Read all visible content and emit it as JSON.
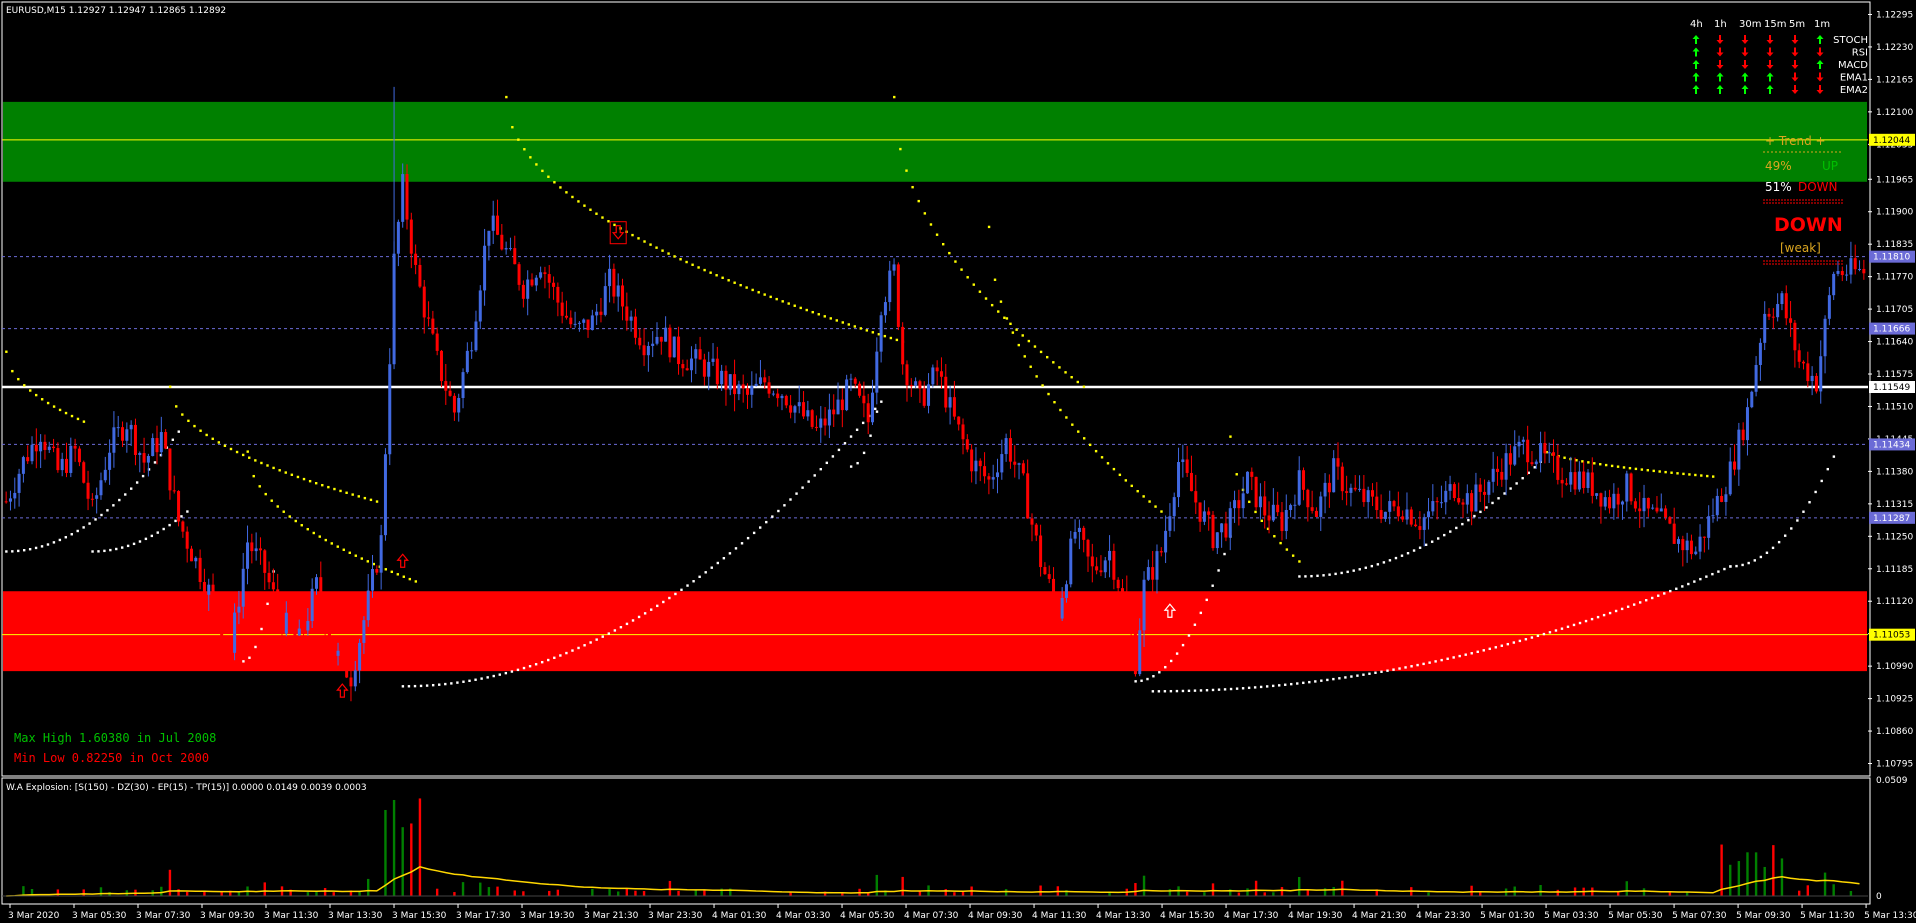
{
  "header": {
    "symbol_info": "EURUSD,M15  1.12927 1.12947 1.12865 1.12892"
  },
  "indicator_header": "W.A Explosion: [S(150) - DZ(30) - EP(15) - TP(15)] 0.0000 0.0149 0.0039 0.0003",
  "stats": {
    "max_high": "Max High 1.60380 in Jul 2008",
    "min_low": "Min Low  0.82250 in Oct 2000"
  },
  "trend_panel": {
    "title": "+  Trend  +",
    "up_pct": "49%",
    "up_label": "UP",
    "down_pct": "51%",
    "down_label": "DOWN",
    "verdict": "DOWN",
    "strength": "[weak]"
  },
  "signal_table": {
    "timeframes": [
      "4h",
      "1h",
      "30m",
      "15m",
      "5m",
      "1m"
    ],
    "rows": [
      {
        "name": "STOCH",
        "signals": [
          "up",
          "down",
          "down",
          "down",
          "down",
          "up"
        ]
      },
      {
        "name": "RSI",
        "signals": [
          "up",
          "down",
          "down",
          "down",
          "down",
          "down"
        ]
      },
      {
        "name": "MACD",
        "signals": [
          "up",
          "down",
          "down",
          "down",
          "down",
          "up"
        ]
      },
      {
        "name": "EMA1",
        "signals": [
          "up",
          "up",
          "up",
          "up",
          "down",
          "down"
        ]
      },
      {
        "name": "EMA2",
        "signals": [
          "up",
          "up",
          "up",
          "up",
          "down",
          "down"
        ]
      }
    ]
  },
  "colors": {
    "bull": "#4169e1",
    "bear": "#ff0000",
    "supply_zone": "#008000",
    "demand_zone": "#ff0000",
    "psar_bear": "#ffff00",
    "psar_bull": "#ffffff",
    "hline_yellow": "#ffff00",
    "hline_white": "#ffffff",
    "dotted_level": "#6b6bd6",
    "hist_up": "#008000",
    "hist_down": "#ff0000",
    "signal_line": "#ffd700"
  },
  "chart_data": {
    "type": "candlestick",
    "y_ticks": [
      "1.12295",
      "1.12230",
      "1.12165",
      "1.12100",
      "1.12035",
      "1.11965",
      "1.11900",
      "1.11835",
      "1.11770",
      "1.11705",
      "1.11640",
      "1.11575",
      "1.11510",
      "1.11445",
      "1.11380",
      "1.11315",
      "1.11250",
      "1.11185",
      "1.11120",
      "1.11055",
      "1.10990",
      "1.10925",
      "1.10860",
      "1.10795"
    ],
    "ylim": [
      1.1077,
      1.1232
    ],
    "x_ticks": [
      "3 Mar 2020",
      "3 Mar 05:30",
      "3 Mar 07:30",
      "3 Mar 09:30",
      "3 Mar 11:30",
      "3 Mar 13:30",
      "3 Mar 15:30",
      "3 Mar 17:30",
      "3 Mar 19:30",
      "3 Mar 21:30",
      "3 Mar 23:30",
      "4 Mar 01:30",
      "4 Mar 03:30",
      "4 Mar 05:30",
      "4 Mar 07:30",
      "4 Mar 09:30",
      "4 Mar 11:30",
      "4 Mar 13:30",
      "4 Mar 15:30",
      "4 Mar 17:30",
      "4 Mar 19:30",
      "4 Mar 21:30",
      "4 Mar 23:30",
      "5 Mar 01:30",
      "5 Mar 03:30",
      "5 Mar 05:30",
      "5 Mar 07:30",
      "5 Mar 09:30",
      "5 Mar 11:30",
      "5 Mar 13:30"
    ],
    "price_labels": [
      {
        "value": "1.12044",
        "style": "yellow"
      },
      {
        "value": "1.11810",
        "style": "blue"
      },
      {
        "value": "1.11666",
        "style": "blue"
      },
      {
        "value": "1.11549",
        "style": "white"
      },
      {
        "value": "1.11434",
        "style": "blue"
      },
      {
        "value": "1.11287",
        "style": "blue"
      },
      {
        "value": "1.11053",
        "style": "yellow"
      }
    ],
    "zones": [
      {
        "kind": "supply",
        "from": 1.1196,
        "to": 1.1212
      },
      {
        "kind": "demand",
        "from": 1.1098,
        "to": 1.1114
      }
    ],
    "hlines": [
      {
        "value": 1.12044,
        "style": "yellow-solid"
      },
      {
        "value": 1.11549,
        "style": "white-solid"
      },
      {
        "value": 1.11053,
        "style": "yellow-solid"
      },
      {
        "value": 1.1181,
        "style": "dotted"
      },
      {
        "value": 1.11666,
        "style": "dotted"
      },
      {
        "value": 1.11434,
        "style": "dotted"
      },
      {
        "value": 1.11287,
        "style": "dotted"
      }
    ],
    "close_path": [
      [
        0,
        1.1132
      ],
      [
        4,
        1.114
      ],
      [
        8,
        1.1146
      ],
      [
        12,
        1.1138
      ],
      [
        16,
        1.1142
      ],
      [
        20,
        1.113
      ],
      [
        24,
        1.1143
      ],
      [
        28,
        1.1148
      ],
      [
        32,
        1.114
      ],
      [
        36,
        1.1145
      ],
      [
        40,
        1.1128
      ],
      [
        44,
        1.112
      ],
      [
        48,
        1.1112
      ],
      [
        52,
        1.1102
      ],
      [
        56,
        1.1124
      ],
      [
        60,
        1.1118
      ],
      [
        64,
        1.1108
      ],
      [
        68,
        1.1104
      ],
      [
        72,
        1.1115
      ],
      [
        76,
        1.1102
      ],
      [
        80,
        1.1097
      ],
      [
        84,
        1.1112
      ],
      [
        87,
        1.1124
      ],
      [
        90,
        1.118
      ],
      [
        92,
        1.1195
      ],
      [
        95,
        1.1178
      ],
      [
        100,
        1.116
      ],
      [
        104,
        1.115
      ],
      [
        108,
        1.1165
      ],
      [
        112,
        1.1188
      ],
      [
        116,
        1.1182
      ],
      [
        120,
        1.1175
      ],
      [
        124,
        1.118
      ],
      [
        128,
        1.1172
      ],
      [
        132,
        1.1166
      ],
      [
        136,
        1.1168
      ],
      [
        140,
        1.1176
      ],
      [
        144,
        1.117
      ],
      [
        148,
        1.1164
      ],
      [
        152,
        1.1166
      ],
      [
        156,
        1.1161
      ],
      [
        160,
        1.116
      ],
      [
        164,
        1.1158
      ],
      [
        168,
        1.1155
      ],
      [
        172,
        1.1153
      ],
      [
        176,
        1.1156
      ],
      [
        180,
        1.1154
      ],
      [
        184,
        1.115
      ],
      [
        188,
        1.1146
      ],
      [
        192,
        1.115
      ],
      [
        196,
        1.1155
      ],
      [
        200,
        1.1148
      ],
      [
        203,
        1.1172
      ],
      [
        206,
        1.1178
      ],
      [
        208,
        1.116
      ],
      [
        212,
        1.1152
      ],
      [
        216,
        1.1158
      ],
      [
        220,
        1.1148
      ],
      [
        224,
        1.114
      ],
      [
        228,
        1.1136
      ],
      [
        232,
        1.1144
      ],
      [
        236,
        1.1135
      ],
      [
        240,
        1.112
      ],
      [
        244,
        1.111
      ],
      [
        248,
        1.1126
      ],
      [
        252,
        1.1118
      ],
      [
        256,
        1.1122
      ],
      [
        260,
        1.111
      ],
      [
        262,
        1.11
      ],
      [
        264,
        1.1115
      ],
      [
        268,
        1.1122
      ],
      [
        272,
        1.114
      ],
      [
        276,
        1.1132
      ],
      [
        280,
        1.1125
      ],
      [
        284,
        1.1128
      ],
      [
        288,
        1.1136
      ],
      [
        292,
        1.113
      ],
      [
        296,
        1.1128
      ],
      [
        300,
        1.1136
      ],
      [
        304,
        1.113
      ],
      [
        308,
        1.1138
      ],
      [
        312,
        1.1134
      ],
      [
        316,
        1.1132
      ],
      [
        320,
        1.113
      ],
      [
        324,
        1.1131
      ],
      [
        328,
        1.1128
      ],
      [
        332,
        1.1131
      ],
      [
        336,
        1.1135
      ],
      [
        340,
        1.1132
      ],
      [
        344,
        1.1136
      ],
      [
        348,
        1.114
      ],
      [
        352,
        1.1143
      ],
      [
        356,
        1.1141
      ],
      [
        360,
        1.1138
      ],
      [
        364,
        1.1137
      ],
      [
        368,
        1.1135
      ],
      [
        372,
        1.1132
      ],
      [
        376,
        1.1135
      ],
      [
        380,
        1.113
      ],
      [
        384,
        1.1128
      ],
      [
        388,
        1.1124
      ],
      [
        392,
        1.1122
      ],
      [
        396,
        1.113
      ],
      [
        400,
        1.1138
      ],
      [
        404,
        1.115
      ],
      [
        408,
        1.117
      ],
      [
        412,
        1.1172
      ],
      [
        416,
        1.116
      ],
      [
        420,
        1.1156
      ],
      [
        424,
        1.1178
      ]
    ],
    "psar_segments": [
      {
        "kind": "bull",
        "x0": 0,
        "x1": 40,
        "y0": 1.1122,
        "y1": 1.1146
      },
      {
        "kind": "bear",
        "x0": 0,
        "x1": 18,
        "y0": 1.1162,
        "y1": 1.1148
      },
      {
        "kind": "bull",
        "x0": 20,
        "x1": 42,
        "y0": 1.1122,
        "y1": 1.113
      },
      {
        "kind": "bear",
        "x0": 38,
        "x1": 86,
        "y0": 1.1155,
        "y1": 1.1132
      },
      {
        "kind": "bull",
        "x0": 55,
        "x1": 62,
        "y0": 1.11,
        "y1": 1.1118
      },
      {
        "kind": "bear",
        "x0": 56,
        "x1": 95,
        "y0": 1.1142,
        "y1": 1.1116
      },
      {
        "kind": "bull",
        "x0": 92,
        "x1": 203,
        "y0": 1.1095,
        "y1": 1.1152
      },
      {
        "kind": "bear",
        "x0": 116,
        "x1": 208,
        "y0": 1.1213,
        "y1": 1.1164
      },
      {
        "kind": "bear",
        "x0": 206,
        "x1": 250,
        "y0": 1.1213,
        "y1": 1.1155
      },
      {
        "kind": "bull",
        "x0": 196,
        "x1": 202,
        "y0": 1.1139,
        "y1": 1.115
      },
      {
        "kind": "bear",
        "x0": 228,
        "x1": 268,
        "y0": 1.1187,
        "y1": 1.113
      },
      {
        "kind": "bull",
        "x0": 262,
        "x1": 284,
        "y0": 1.1096,
        "y1": 1.1125
      },
      {
        "kind": "bear",
        "x0": 284,
        "x1": 300,
        "y0": 1.1145,
        "y1": 1.112
      },
      {
        "kind": "bull",
        "x0": 300,
        "x1": 356,
        "y0": 1.1117,
        "y1": 1.114
      },
      {
        "kind": "bear",
        "x0": 356,
        "x1": 396,
        "y0": 1.1143,
        "y1": 1.1137
      },
      {
        "kind": "bull",
        "x0": 266,
        "x1": 400,
        "y0": 1.1094,
        "y1": 1.1119
      },
      {
        "kind": "bull",
        "x0": 400,
        "x1": 424,
        "y0": 1.1119,
        "y1": 1.1141
      }
    ],
    "arrows": [
      {
        "dir": "up",
        "x": 78,
        "y": 1.1094,
        "color": "red"
      },
      {
        "dir": "up",
        "x": 92,
        "y": 1.112,
        "color": "red"
      },
      {
        "dir": "down",
        "x": 142,
        "y": 1.1186,
        "color": "red"
      },
      {
        "dir": "up",
        "x": 270,
        "y": 1.111,
        "color": "white"
      }
    ],
    "histogram": {
      "ylim": [
        0,
        0.0509
      ],
      "y_ticks": [
        "0.0509",
        "0"
      ]
    }
  }
}
